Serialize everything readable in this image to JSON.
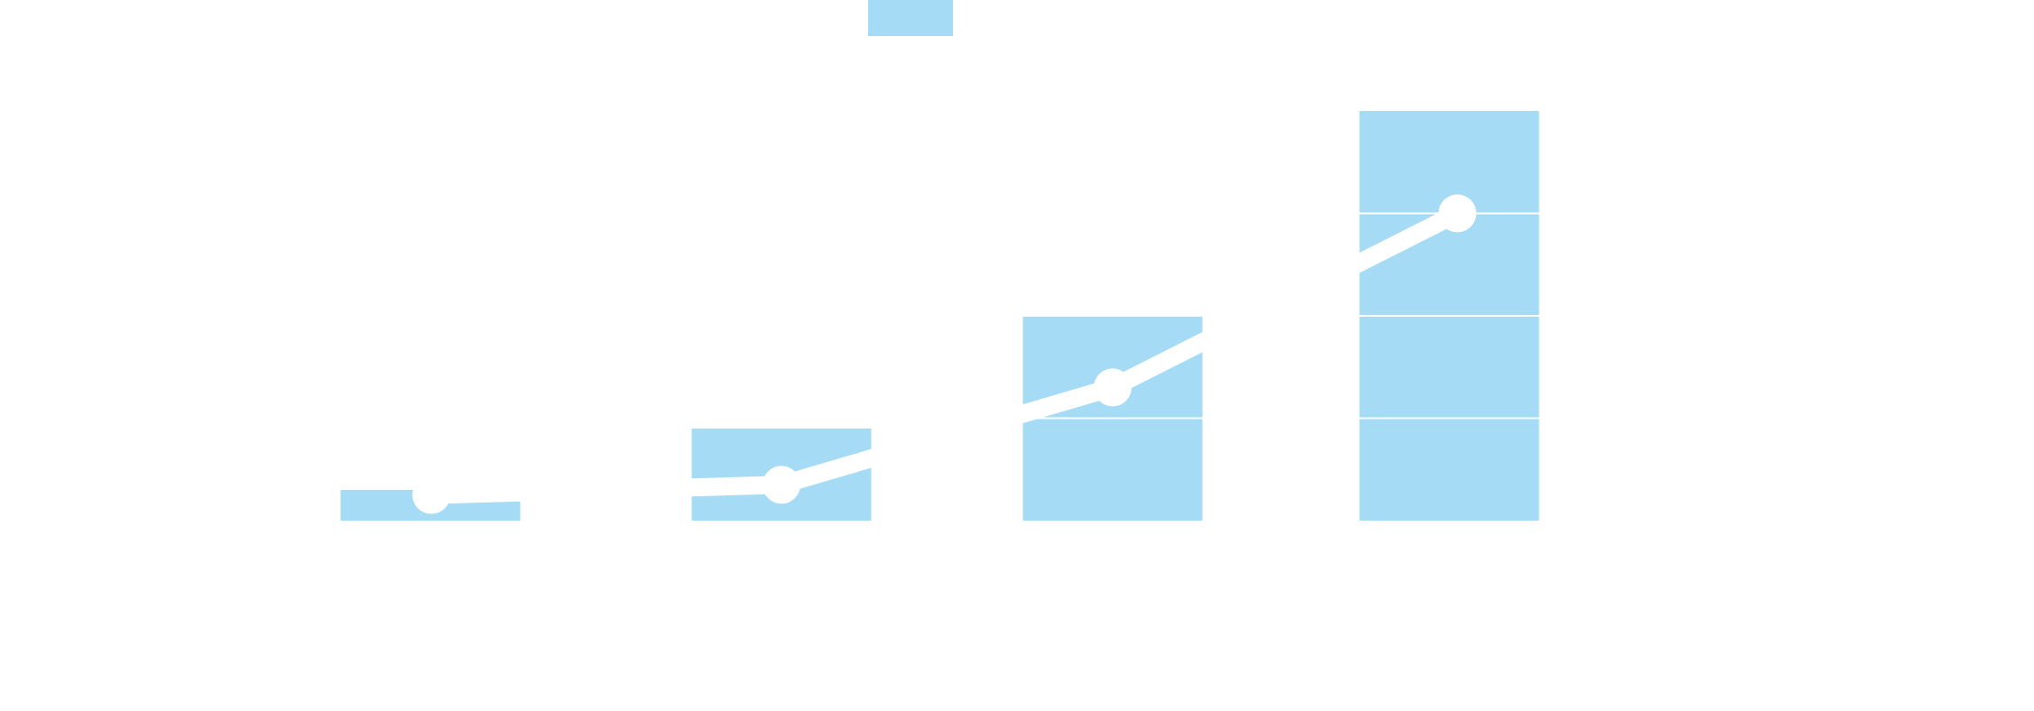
{
  "chart_data": {
    "type": "bar",
    "categories": [
      "",
      "",
      "",
      ""
    ],
    "series": [
      {
        "type": "bar",
        "values": [
          0.3,
          0.9,
          2,
          4
        ]
      },
      {
        "type": "line",
        "values": [
          0.25,
          0.35,
          1.3,
          3
        ]
      }
    ],
    "legend_swatch": "bar",
    "ylim": [
      0,
      4
    ],
    "grid": true,
    "legend_position": "top",
    "colors": {
      "bar": "#a6dbf5",
      "line": "#ffffff",
      "grid": "#ffffff",
      "background": "#ffffff"
    }
  }
}
